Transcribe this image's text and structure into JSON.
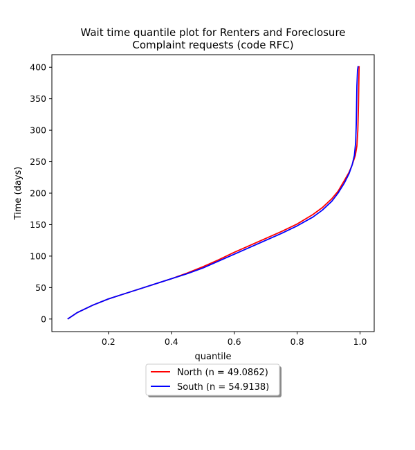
{
  "chart_data": {
    "type": "line",
    "title": [
      "Wait time quantile plot for Renters and Foreclosure",
      "Complaint  requests (code RFC)"
    ],
    "xlabel": "quantile",
    "ylabel": "Time (days)",
    "xlim": [
      0.02,
      1.045
    ],
    "ylim": [
      -20,
      420
    ],
    "xticks": [
      0.2,
      0.4,
      0.6,
      0.8,
      1.0
    ],
    "xtick_labels": [
      "0.2",
      "0.4",
      "0.6",
      "0.8",
      "1.0"
    ],
    "yticks": [
      0,
      50,
      100,
      150,
      200,
      250,
      300,
      350,
      400
    ],
    "ytick_labels": [
      "0",
      "50",
      "100",
      "150",
      "200",
      "250",
      "300",
      "350",
      "400"
    ],
    "grid": false,
    "legend_position": "below-center",
    "series": [
      {
        "name": "North (n = 49.0862)",
        "color": "#ff0000",
        "x": [
          0.07,
          0.1,
          0.15,
          0.2,
          0.25,
          0.3,
          0.35,
          0.4,
          0.45,
          0.5,
          0.55,
          0.6,
          0.65,
          0.7,
          0.75,
          0.8,
          0.85,
          0.88,
          0.91,
          0.93,
          0.95,
          0.965,
          0.975,
          0.985,
          0.99,
          0.993,
          0.995,
          0.997
        ],
        "y": [
          0,
          10,
          22,
          32,
          40,
          48,
          56,
          64,
          73,
          83,
          94,
          106,
          117,
          128,
          139,
          151,
          166,
          177,
          191,
          203,
          220,
          233,
          245,
          260,
          275,
          300,
          340,
          402
        ]
      },
      {
        "name": "South (n = 54.9138)",
        "color": "#0000ff",
        "x": [
          0.07,
          0.1,
          0.15,
          0.2,
          0.25,
          0.3,
          0.35,
          0.4,
          0.45,
          0.5,
          0.55,
          0.6,
          0.65,
          0.7,
          0.75,
          0.8,
          0.85,
          0.88,
          0.91,
          0.93,
          0.95,
          0.965,
          0.975,
          0.982,
          0.986,
          0.988,
          0.989,
          0.99,
          0.992,
          0.994
        ],
        "y": [
          0,
          10,
          22,
          32,
          40,
          48,
          56,
          64,
          72,
          81,
          92,
          103,
          114,
          125,
          136,
          148,
          162,
          173,
          187,
          200,
          216,
          231,
          245,
          260,
          280,
          310,
          340,
          370,
          395,
          402
        ]
      }
    ]
  }
}
